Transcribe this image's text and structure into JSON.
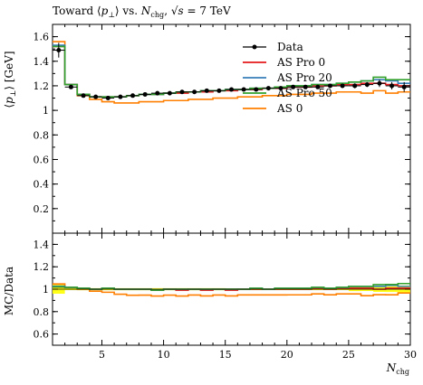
{
  "chart_data": {
    "type": "line",
    "title": "Toward ⟨p⊥⟩ vs. Nchg, √s = 7 TeV",
    "title_parts": {
      "a": "Toward ⟨",
      "b": "p",
      "c": "⊥",
      "d": "⟩ vs. ",
      "e": "N",
      "f": "chg",
      "g": ", √",
      "h": "s",
      "i": " = 7 TeV"
    },
    "xlabel_parts": {
      "main": "N",
      "sub": "chg"
    },
    "ylabel_parts": {
      "a": "⟨",
      "b": "p",
      "c": "⊥",
      "d": "⟩ [GeV]"
    },
    "ratio_ylabel": "MC/Data",
    "xlim": [
      1,
      30
    ],
    "ylim": [
      0,
      1.7
    ],
    "ratio_ylim": [
      0.5,
      1.5
    ],
    "xticks": [
      "5",
      "10",
      "15",
      "20",
      "25",
      "30"
    ],
    "yticks": [
      "0.2",
      "0.4",
      "0.6",
      "0.8",
      "1",
      "1.2",
      "1.4",
      "1.6"
    ],
    "ratio_yticks": [
      "0.6",
      "0.8",
      "1",
      "1.2",
      "1.4"
    ],
    "legend_placement": "top-right",
    "bin_edges": [
      1,
      2,
      3,
      4,
      5,
      6,
      7,
      8,
      9,
      10,
      11,
      12,
      13,
      14,
      15,
      16,
      17,
      18,
      19,
      20,
      21,
      22,
      23,
      24,
      25,
      26,
      27,
      28,
      29,
      30
    ],
    "series": [
      {
        "name": "Data",
        "color": "#000000",
        "kind": "points",
        "x": [
          1.5,
          2.5,
          3.5,
          4.5,
          5.5,
          6.5,
          7.5,
          8.5,
          9.5,
          10.5,
          11.5,
          12.5,
          13.5,
          14.5,
          15.5,
          16.5,
          17.5,
          18.5,
          19.5,
          20.5,
          21.5,
          22.5,
          23.5,
          24.5,
          25.5,
          26.5,
          27.5,
          28.5,
          29.5
        ],
        "values": [
          1.49,
          1.19,
          1.12,
          1.11,
          1.1,
          1.11,
          1.12,
          1.13,
          1.14,
          1.14,
          1.15,
          1.15,
          1.16,
          1.16,
          1.17,
          1.17,
          1.17,
          1.18,
          1.18,
          1.19,
          1.19,
          1.19,
          1.2,
          1.2,
          1.2,
          1.21,
          1.22,
          1.2,
          1.19
        ],
        "errors": [
          0.06,
          0.01,
          0.01,
          0.01,
          0.01,
          0.01,
          0.01,
          0.01,
          0.01,
          0.01,
          0.01,
          0.01,
          0.01,
          0.01,
          0.01,
          0.01,
          0.01,
          0.01,
          0.01,
          0.01,
          0.01,
          0.01,
          0.01,
          0.01,
          0.02,
          0.02,
          0.03,
          0.03,
          0.04
        ]
      },
      {
        "name": "AS Pro 0",
        "color": "#e41a1c",
        "kind": "hist",
        "values": [
          1.52,
          1.21,
          1.13,
          1.11,
          1.11,
          1.11,
          1.12,
          1.13,
          1.13,
          1.14,
          1.14,
          1.15,
          1.15,
          1.16,
          1.16,
          1.17,
          1.17,
          1.18,
          1.18,
          1.19,
          1.19,
          1.2,
          1.2,
          1.21,
          1.21,
          1.22,
          1.22,
          1.21,
          1.2
        ]
      },
      {
        "name": "AS Pro 20",
        "color": "#377eb8",
        "kind": "hist",
        "values": [
          1.53,
          1.21,
          1.13,
          1.11,
          1.11,
          1.11,
          1.12,
          1.13,
          1.13,
          1.14,
          1.15,
          1.15,
          1.16,
          1.16,
          1.17,
          1.17,
          1.18,
          1.18,
          1.19,
          1.2,
          1.2,
          1.21,
          1.21,
          1.22,
          1.23,
          1.24,
          1.25,
          1.24,
          1.22
        ]
      },
      {
        "name": "AS Pro 50",
        "color": "#33a02c",
        "kind": "hist",
        "values": [
          1.52,
          1.21,
          1.13,
          1.11,
          1.11,
          1.11,
          1.12,
          1.13,
          1.13,
          1.14,
          1.15,
          1.15,
          1.16,
          1.16,
          1.17,
          1.17,
          1.18,
          1.18,
          1.19,
          1.2,
          1.2,
          1.21,
          1.21,
          1.22,
          1.23,
          1.24,
          1.27,
          1.25,
          1.25
        ]
      },
      {
        "name": "AS 0",
        "color": "#ff7f00",
        "kind": "hist",
        "values": [
          1.56,
          1.21,
          1.12,
          1.09,
          1.07,
          1.06,
          1.06,
          1.07,
          1.07,
          1.08,
          1.08,
          1.09,
          1.09,
          1.1,
          1.1,
          1.11,
          1.11,
          1.12,
          1.12,
          1.13,
          1.13,
          1.14,
          1.14,
          1.15,
          1.15,
          1.14,
          1.16,
          1.14,
          1.15
        ]
      }
    ],
    "ratio_band_color": "#ffff00"
  }
}
